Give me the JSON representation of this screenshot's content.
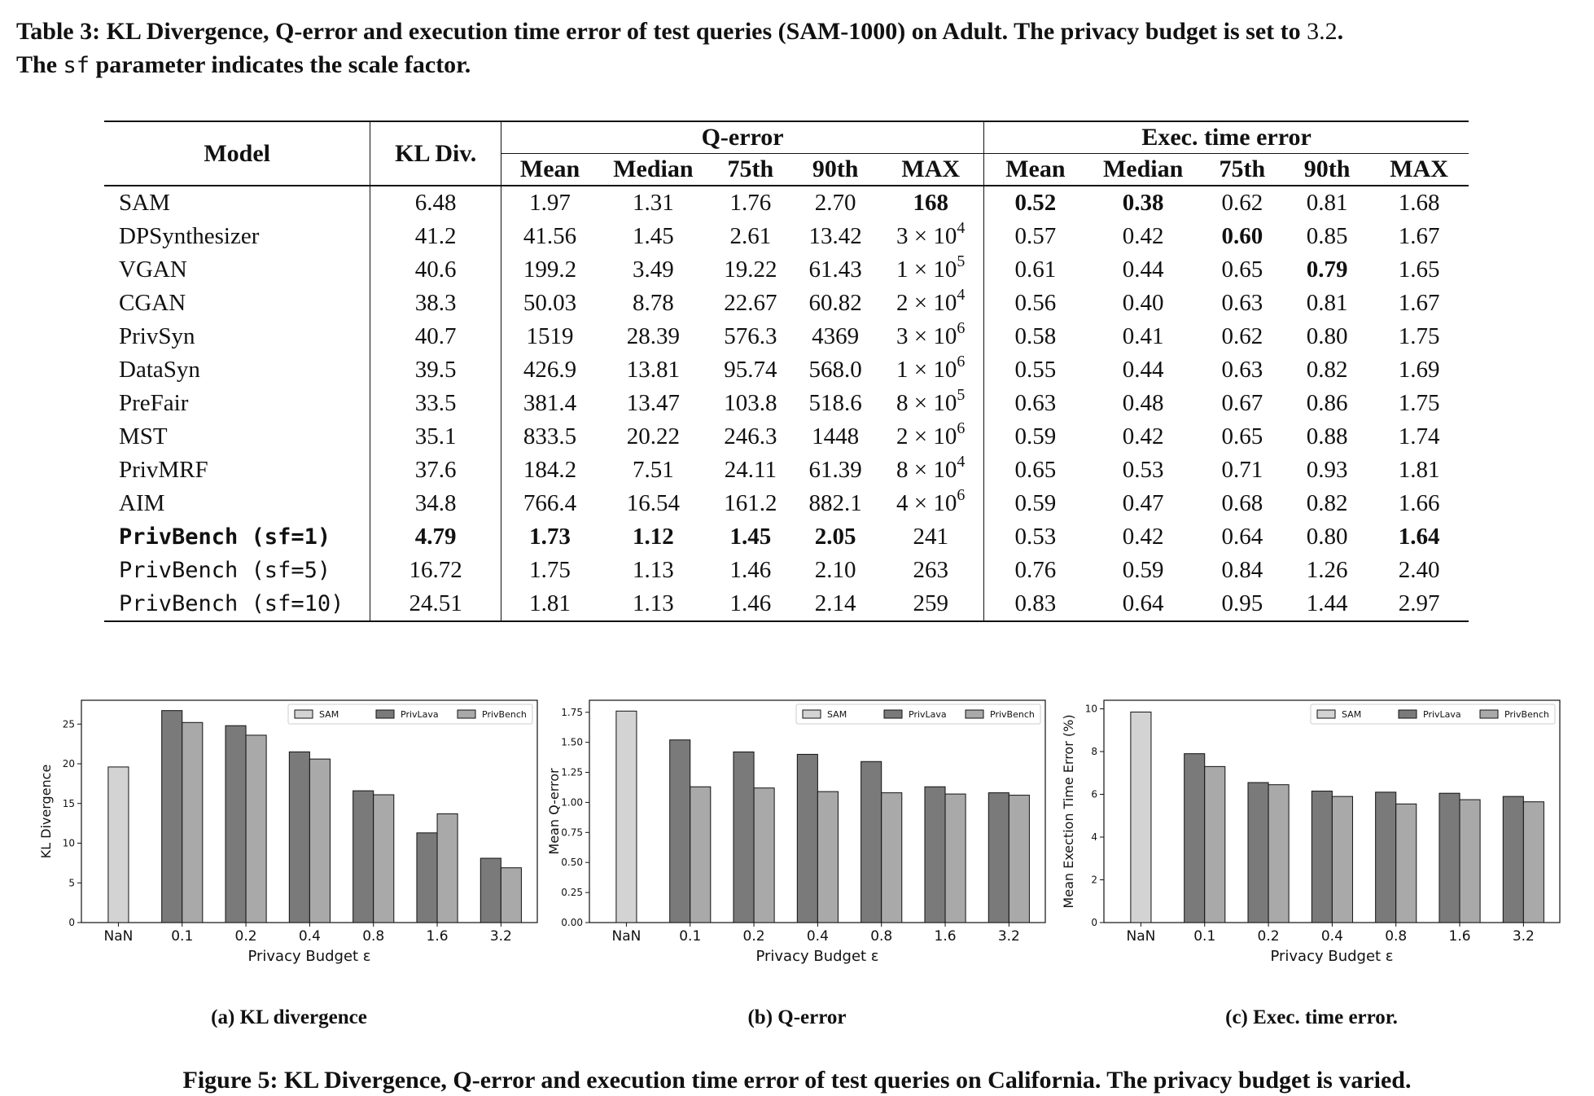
{
  "table_caption": {
    "part1": "Table 3: KL Divergence, Q-error and execution time error of test queries (SAM-1000) on Adult. The privacy budget is set to ",
    "budget": "3.2",
    "part2": ".",
    "line2_a": "The ",
    "sf": "sf",
    "line2_b": " parameter indicates the scale factor."
  },
  "table": {
    "headers": {
      "model": "Model",
      "kl": "KL Div.",
      "qerror": "Q-error",
      "exec": "Exec. time error",
      "sub": [
        "Mean",
        "Median",
        "75th",
        "90th",
        "MAX",
        "Mean",
        "Median",
        "75th",
        "90th",
        "MAX"
      ]
    },
    "rows": [
      {
        "model": "SAM",
        "mono": false,
        "kl": "6.48",
        "q": [
          "1.97",
          "1.31",
          "1.76",
          "2.70"
        ],
        "qmax": {
          "m": "168"
        },
        "e": [
          "0.52",
          "0.38",
          "0.62",
          "0.81",
          "1.68"
        ],
        "bold": [
          "qmax",
          "e0",
          "e1"
        ]
      },
      {
        "model": "DPSynthesizer",
        "mono": false,
        "kl": "41.2",
        "q": [
          "41.56",
          "1.45",
          "2.61",
          "13.42"
        ],
        "qmax": {
          "m": "3 × 10",
          "p": "4"
        },
        "e": [
          "0.57",
          "0.42",
          "0.60",
          "0.85",
          "1.67"
        ],
        "bold": [
          "e2"
        ]
      },
      {
        "model": "VGAN",
        "mono": false,
        "kl": "40.6",
        "q": [
          "199.2",
          "3.49",
          "19.22",
          "61.43"
        ],
        "qmax": {
          "m": "1 × 10",
          "p": "5"
        },
        "e": [
          "0.61",
          "0.44",
          "0.65",
          "0.79",
          "1.65"
        ],
        "bold": [
          "e3"
        ]
      },
      {
        "model": "CGAN",
        "mono": false,
        "kl": "38.3",
        "q": [
          "50.03",
          "8.78",
          "22.67",
          "60.82"
        ],
        "qmax": {
          "m": "2 × 10",
          "p": "4"
        },
        "e": [
          "0.56",
          "0.40",
          "0.63",
          "0.81",
          "1.67"
        ],
        "bold": []
      },
      {
        "model": "PrivSyn",
        "mono": false,
        "kl": "40.7",
        "q": [
          "1519",
          "28.39",
          "576.3",
          "4369"
        ],
        "qmax": {
          "m": "3 × 10",
          "p": "6"
        },
        "e": [
          "0.58",
          "0.41",
          "0.62",
          "0.80",
          "1.75"
        ],
        "bold": []
      },
      {
        "model": "DataSyn",
        "mono": false,
        "kl": "39.5",
        "q": [
          "426.9",
          "13.81",
          "95.74",
          "568.0"
        ],
        "qmax": {
          "m": "1 × 10",
          "p": "6"
        },
        "e": [
          "0.55",
          "0.44",
          "0.63",
          "0.82",
          "1.69"
        ],
        "bold": []
      },
      {
        "model": "PreFair",
        "mono": false,
        "kl": "33.5",
        "q": [
          "381.4",
          "13.47",
          "103.8",
          "518.6"
        ],
        "qmax": {
          "m": "8 × 10",
          "p": "5"
        },
        "e": [
          "0.63",
          "0.48",
          "0.67",
          "0.86",
          "1.75"
        ],
        "bold": []
      },
      {
        "model": "MST",
        "mono": false,
        "kl": "35.1",
        "q": [
          "833.5",
          "20.22",
          "246.3",
          "1448"
        ],
        "qmax": {
          "m": "2 × 10",
          "p": "6"
        },
        "e": [
          "0.59",
          "0.42",
          "0.65",
          "0.88",
          "1.74"
        ],
        "bold": []
      },
      {
        "model": "PrivMRF",
        "mono": false,
        "kl": "37.6",
        "q": [
          "184.2",
          "7.51",
          "24.11",
          "61.39"
        ],
        "qmax": {
          "m": "8 × 10",
          "p": "4"
        },
        "e": [
          "0.65",
          "0.53",
          "0.71",
          "0.93",
          "1.81"
        ],
        "bold": []
      },
      {
        "model": "AIM",
        "mono": false,
        "kl": "34.8",
        "q": [
          "766.4",
          "16.54",
          "161.2",
          "882.1"
        ],
        "qmax": {
          "m": "4 × 10",
          "p": "6"
        },
        "e": [
          "0.59",
          "0.47",
          "0.68",
          "0.82",
          "1.66"
        ],
        "bold": []
      },
      {
        "model": "PrivBench (sf=1)",
        "mono": true,
        "kl": "4.79",
        "q": [
          "1.73",
          "1.12",
          "1.45",
          "2.05"
        ],
        "qmax": {
          "m": "241"
        },
        "e": [
          "0.53",
          "0.42",
          "0.64",
          "0.80",
          "1.64"
        ],
        "bold": [
          "model",
          "kl",
          "q0",
          "q1",
          "q2",
          "q3",
          "e4"
        ]
      },
      {
        "model": "PrivBench (sf=5)",
        "mono": true,
        "kl": "16.72",
        "q": [
          "1.75",
          "1.13",
          "1.46",
          "2.10"
        ],
        "qmax": {
          "m": "263"
        },
        "e": [
          "0.76",
          "0.59",
          "0.84",
          "1.26",
          "2.40"
        ],
        "bold": []
      },
      {
        "model": "PrivBench (sf=10)",
        "mono": true,
        "kl": "24.51",
        "q": [
          "1.81",
          "1.13",
          "1.46",
          "2.14"
        ],
        "qmax": {
          "m": "259"
        },
        "e": [
          "0.83",
          "0.64",
          "0.95",
          "1.44",
          "2.97"
        ],
        "bold": []
      }
    ]
  },
  "colors": {
    "SAM": "#d3d3d3",
    "PrivLava": "#7a7a7a",
    "PrivBench": "#a9a9a9",
    "edge": "#111111"
  },
  "chart_data": [
    {
      "type": "bar",
      "caption": "(a) KL divergence",
      "categories": [
        "NaN",
        "0.1",
        "0.2",
        "0.4",
        "0.8",
        "1.6",
        "3.2"
      ],
      "series": [
        {
          "name": "SAM",
          "values": [
            19.6,
            null,
            null,
            null,
            null,
            null,
            null
          ]
        },
        {
          "name": "PrivLava",
          "values": [
            null,
            26.7,
            24.8,
            21.5,
            16.6,
            11.3,
            8.1
          ]
        },
        {
          "name": "PrivBench",
          "values": [
            null,
            25.2,
            23.6,
            20.6,
            16.1,
            13.7,
            6.9
          ]
        }
      ],
      "xlabel": "Privacy Budget ε",
      "ylabel": "KL Divergence",
      "ylim": [
        0,
        28
      ],
      "yticks": [
        "0",
        "5",
        "10",
        "15",
        "20",
        "25"
      ],
      "ytick_values": [
        0,
        5,
        10,
        15,
        20,
        25
      ],
      "legend": "top-right",
      "grid": false
    },
    {
      "type": "bar",
      "caption": "(b) Q-error",
      "categories": [
        "NaN",
        "0.1",
        "0.2",
        "0.4",
        "0.8",
        "1.6",
        "3.2"
      ],
      "series": [
        {
          "name": "SAM",
          "values": [
            1.76,
            null,
            null,
            null,
            null,
            null,
            null
          ]
        },
        {
          "name": "PrivLava",
          "values": [
            null,
            1.52,
            1.42,
            1.4,
            1.34,
            1.13,
            1.08
          ]
        },
        {
          "name": "PrivBench",
          "values": [
            null,
            1.13,
            1.12,
            1.09,
            1.08,
            1.07,
            1.06
          ]
        }
      ],
      "xlabel": "Privacy Budget ε",
      "ylabel": "Mean Q-error",
      "ylim": [
        0,
        1.85
      ],
      "yticks": [
        "0.00",
        "0.25",
        "0.50",
        "0.75",
        "1.00",
        "1.25",
        "1.50",
        "1.75"
      ],
      "ytick_values": [
        0,
        0.25,
        0.5,
        0.75,
        1.0,
        1.25,
        1.5,
        1.75
      ],
      "legend": "top-right",
      "grid": false
    },
    {
      "type": "bar",
      "caption": "(c) Exec. time error.",
      "categories": [
        "NaN",
        "0.1",
        "0.2",
        "0.4",
        "0.8",
        "1.6",
        "3.2"
      ],
      "series": [
        {
          "name": "SAM",
          "values": [
            9.85,
            null,
            null,
            null,
            null,
            null,
            null
          ]
        },
        {
          "name": "PrivLava",
          "values": [
            null,
            7.9,
            6.55,
            6.15,
            6.1,
            6.05,
            5.9
          ]
        },
        {
          "name": "PrivBench",
          "values": [
            null,
            7.3,
            6.45,
            5.9,
            5.55,
            5.75,
            5.65
          ]
        }
      ],
      "xlabel": "Privacy Budget ε",
      "ylabel": "Mean Exection Time Error (%)",
      "ylim": [
        0,
        10.4
      ],
      "yticks": [
        "0",
        "2",
        "4",
        "6",
        "8",
        "10"
      ],
      "ytick_values": [
        0,
        2,
        4,
        6,
        8,
        10
      ],
      "legend": "top-right",
      "grid": false
    }
  ],
  "figure_caption": "Figure 5: KL Divergence, Q-error and execution time error of test queries on California. The privacy budget is varied."
}
